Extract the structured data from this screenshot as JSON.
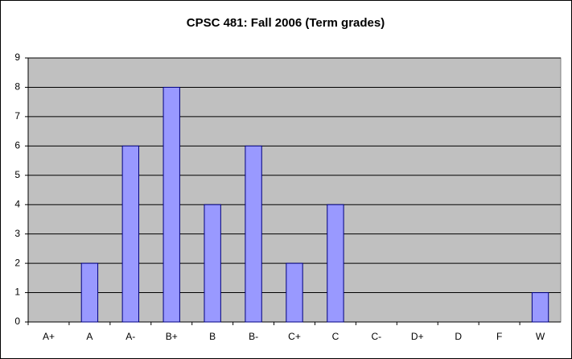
{
  "chart_data": {
    "type": "bar",
    "title": "CPSC 481: Fall 2006 (Term grades)",
    "categories": [
      "A+",
      "A",
      "A-",
      "B+",
      "B",
      "B-",
      "C+",
      "C",
      "C-",
      "D+",
      "D",
      "F",
      "W"
    ],
    "values": [
      0,
      2,
      6,
      8,
      4,
      6,
      2,
      4,
      0,
      0,
      0,
      0,
      1
    ],
    "color": "#9999ff",
    "ylim": [
      0,
      9
    ],
    "yticks": [
      0,
      1,
      2,
      3,
      4,
      5,
      6,
      7,
      8,
      9
    ],
    "grid": true
  }
}
